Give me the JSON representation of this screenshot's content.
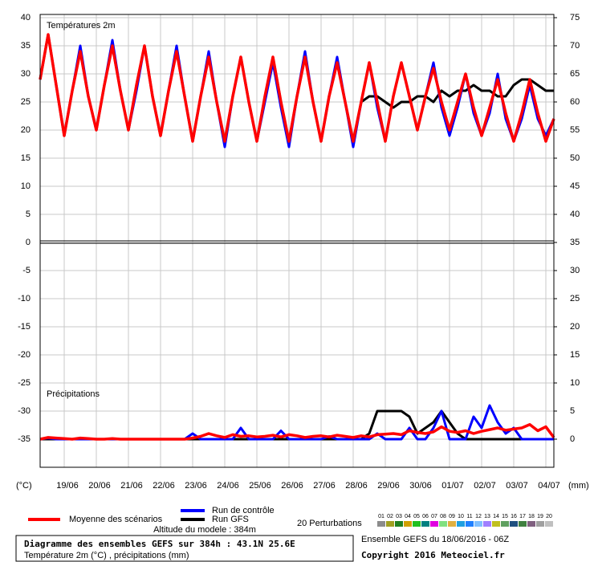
{
  "chart_data": {
    "type": "line",
    "annotations": [
      "Températures 2m",
      "Précipitations"
    ],
    "ylabel": "(°C)",
    "y2label": "(mm)",
    "x": [
      0,
      1,
      2,
      3,
      4,
      5,
      6,
      7,
      8,
      9,
      10,
      11,
      12,
      13,
      14,
      15,
      16,
      17,
      18,
      19,
      20,
      21,
      22,
      23,
      24,
      25,
      26,
      27,
      28,
      29,
      30,
      31,
      32,
      33,
      34,
      35,
      36,
      37,
      38,
      39,
      40,
      41,
      42,
      43,
      44,
      45,
      46,
      47,
      48,
      49,
      50,
      51,
      52,
      53,
      54,
      55,
      56,
      57,
      58,
      59,
      60,
      61,
      62,
      63,
      64
    ],
    "xlim": [
      0,
      64
    ],
    "xticks": [
      {
        "value": 3,
        "label": "19/06"
      },
      {
        "value": 7,
        "label": "20/06"
      },
      {
        "value": 11,
        "label": "21/06"
      },
      {
        "value": 15,
        "label": "22/06"
      },
      {
        "value": 19,
        "label": "23/06"
      },
      {
        "value": 23,
        "label": "24/06"
      },
      {
        "value": 27,
        "label": "25/06"
      },
      {
        "value": 31,
        "label": "26/06"
      },
      {
        "value": 35,
        "label": "27/06"
      },
      {
        "value": 39,
        "label": "28/06"
      },
      {
        "value": 43,
        "label": "29/06"
      },
      {
        "value": 47,
        "label": "30/06"
      },
      {
        "value": 51,
        "label": "01/07"
      },
      {
        "value": 55,
        "label": "02/07"
      },
      {
        "value": 59,
        "label": "03/07"
      },
      {
        "value": 63,
        "label": "04/07"
      }
    ],
    "ylim": [
      -40,
      40
    ],
    "yticks": [
      40,
      35,
      30,
      25,
      20,
      15,
      10,
      5,
      0,
      -5,
      -10,
      -15,
      -20,
      -25,
      -30,
      -35
    ],
    "y2lim": [
      -5,
      75
    ],
    "y2ticks": [
      75,
      70,
      65,
      60,
      55,
      50,
      45,
      40,
      35,
      30,
      25,
      20,
      15,
      10,
      5,
      0
    ],
    "grid": true,
    "series": [
      {
        "name": "Moyenne des scénarios",
        "color": "#ff0000",
        "values": [
          29,
          37,
          28,
          19,
          27,
          34,
          26,
          20,
          28,
          35,
          27,
          20,
          28,
          35,
          26,
          19,
          27,
          34,
          26,
          18,
          26,
          33,
          25,
          18,
          26,
          33,
          25,
          18,
          26,
          33,
          25,
          18,
          26,
          33,
          25,
          18,
          26,
          32,
          25,
          18,
          25,
          32,
          25,
          18,
          26,
          32,
          26,
          20,
          26,
          31,
          25,
          20,
          25,
          30,
          24,
          19,
          24,
          29,
          23,
          18,
          23,
          29,
          23,
          18,
          22
        ],
        "precip": [
          0,
          0.3,
          0.2,
          0.1,
          0,
          0.2,
          0.1,
          0,
          0,
          0.1,
          0,
          0,
          0,
          0,
          0,
          0,
          0,
          0,
          0,
          0.2,
          0.5,
          1,
          0.6,
          0.3,
          0.8,
          0.5,
          0.6,
          0.4,
          0.5,
          0.7,
          0.4,
          0.8,
          0.6,
          0.3,
          0.5,
          0.6,
          0.4,
          0.7,
          0.5,
          0.3,
          0.6,
          0.4,
          0.8,
          0.9,
          1,
          0.8,
          1.5,
          1.2,
          1,
          1.3,
          2.2,
          1.4,
          1.2,
          1.5,
          1,
          1.4,
          1.7,
          2,
          1.6,
          1.8,
          2,
          2.6,
          1.5,
          2.2,
          0.3
        ]
      },
      {
        "name": "Run de contrôle",
        "color": "#0000ff",
        "values": [
          29,
          37,
          28,
          19,
          27,
          35,
          26,
          20,
          28,
          36,
          27,
          20,
          27,
          35,
          26,
          19,
          27,
          35,
          26,
          18,
          26,
          34,
          25,
          17,
          26,
          33,
          25,
          18,
          25,
          32,
          24,
          17,
          26,
          34,
          25,
          18,
          26,
          33,
          25,
          17,
          25,
          32,
          24,
          18,
          26,
          32,
          26,
          20,
          26,
          32,
          24,
          19,
          24,
          30,
          23,
          19,
          23,
          30,
          22,
          18,
          22,
          28,
          22,
          19,
          22
        ],
        "precip": [
          0,
          0.2,
          0,
          0,
          0,
          0,
          0,
          0,
          0,
          0,
          0,
          0,
          0,
          0,
          0,
          0,
          0,
          0,
          0,
          1,
          0,
          0,
          0,
          0,
          0,
          2,
          0,
          0,
          0,
          0,
          1.5,
          0,
          0,
          0,
          0,
          0,
          0.5,
          0,
          0,
          0,
          0,
          0,
          1,
          0,
          0,
          0,
          2,
          0,
          0,
          2,
          5,
          0,
          0,
          0,
          4,
          2,
          6,
          3,
          1,
          2,
          0,
          0,
          0,
          0,
          0
        ]
      },
      {
        "name": "Run GFS",
        "color": "#000000",
        "values": [
          29,
          37,
          28,
          19,
          27,
          34,
          26,
          20,
          28,
          35,
          27,
          20,
          28,
          35,
          26,
          19,
          27,
          34,
          26,
          18,
          26,
          33,
          25,
          18,
          26,
          33,
          25,
          18,
          26,
          33,
          25,
          18,
          26,
          33,
          25,
          18,
          26,
          32,
          25,
          18,
          25,
          26,
          26,
          25,
          24,
          25,
          25,
          26,
          26,
          25,
          27,
          26,
          27,
          27,
          28,
          27,
          27,
          26,
          26,
          28,
          29,
          29,
          28,
          27,
          27
        ],
        "precip": [
          0,
          0,
          0,
          0,
          0,
          0,
          0,
          0,
          0,
          0,
          0,
          0,
          0,
          0,
          0,
          0,
          0,
          0,
          0,
          0,
          0,
          0,
          0,
          0,
          0,
          0,
          0,
          0,
          0,
          0,
          0,
          0,
          0,
          0,
          0,
          0,
          0,
          0,
          0,
          0,
          0,
          1,
          5,
          5,
          5,
          5,
          4,
          1,
          2,
          3,
          5,
          3,
          1,
          0,
          0,
          0,
          0,
          0,
          0,
          0,
          0,
          0,
          0,
          0,
          0
        ]
      }
    ],
    "altitude": "Altitude du modele : 384m",
    "perturbations": {
      "label": "20 Perturbations",
      "items": [
        {
          "name": "01",
          "color": "#8c8c8c"
        },
        {
          "name": "02",
          "color": "#a0a020"
        },
        {
          "name": "03",
          "color": "#208020"
        },
        {
          "name": "04",
          "color": "#d0a000"
        },
        {
          "name": "05",
          "color": "#20c020"
        },
        {
          "name": "06",
          "color": "#008080"
        },
        {
          "name": "07",
          "color": "#e000e0"
        },
        {
          "name": "08",
          "color": "#80e080"
        },
        {
          "name": "09",
          "color": "#e0b040"
        },
        {
          "name": "10",
          "color": "#20a0e0"
        },
        {
          "name": "11",
          "color": "#2080ff"
        },
        {
          "name": "12",
          "color": "#80c0ff"
        },
        {
          "name": "13",
          "color": "#a080ff"
        },
        {
          "name": "14",
          "color": "#c0c020"
        },
        {
          "name": "15",
          "color": "#60a060"
        },
        {
          "name": "16",
          "color": "#205080"
        },
        {
          "name": "17",
          "color": "#408040"
        },
        {
          "name": "18",
          "color": "#806080"
        },
        {
          "name": "19",
          "color": "#a0a0a0"
        },
        {
          "name": "20",
          "color": "#c0c0c0"
        }
      ]
    }
  },
  "footer": {
    "title": "Diagramme des ensembles GEFS sur 384h : 43.1N 25.6E",
    "subtitle": "Température 2m (°C) , précipitations (mm)",
    "run": "Ensemble GEFS du 18/06/2016 - 06Z",
    "copyright": "Copyright 2016 Meteociel.fr"
  }
}
